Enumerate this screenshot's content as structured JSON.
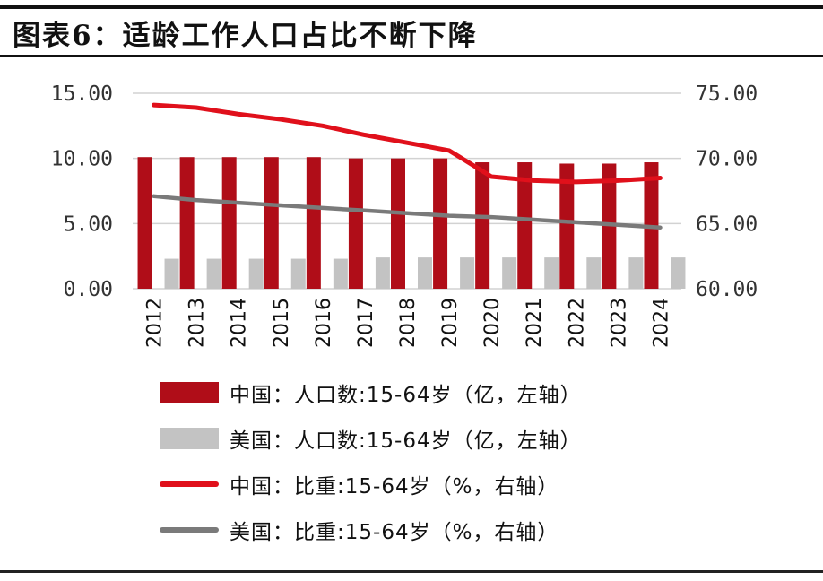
{
  "title": "图表6：适龄工作人口占比不断下降",
  "colors": {
    "china_bar": "#b00d18",
    "us_bar": "#c3c3c3",
    "china_line": "#e0101b",
    "us_line": "#7a7a7a"
  },
  "chart_data": {
    "type": "bar",
    "title": "适龄工作人口占比不断下降",
    "categories": [
      "2012",
      "2013",
      "2014",
      "2015",
      "2016",
      "2017",
      "2018",
      "2019",
      "2020",
      "2021",
      "2022",
      "2023",
      "2024"
    ],
    "y_left": {
      "ylim": [
        0,
        15
      ],
      "ticks": [
        "0.00",
        "5.00",
        "10.00",
        "15.00"
      ]
    },
    "y_right": {
      "ylim": [
        60,
        75
      ],
      "ticks": [
        "60.00",
        "65.00",
        "70.00",
        "75.00"
      ]
    },
    "grid": "horizontal",
    "legend_placement": "bottom",
    "series": [
      {
        "name": "中国：人口数:15-64岁（亿，左轴）",
        "type": "bar",
        "axis": "left",
        "values": [
          10.1,
          10.1,
          10.1,
          10.1,
          10.1,
          10.0,
          10.0,
          10.0,
          9.7,
          9.7,
          9.6,
          9.6,
          9.7
        ]
      },
      {
        "name": "美国：人口数:15-64岁（亿，左轴）",
        "type": "bar",
        "axis": "left",
        "values": [
          2.3,
          2.3,
          2.3,
          2.3,
          2.3,
          2.4,
          2.4,
          2.4,
          2.4,
          2.4,
          2.4,
          2.4,
          2.4
        ]
      },
      {
        "name": "中国：比重:15-64岁（%，右轴）",
        "type": "line",
        "axis": "right",
        "values": [
          74.1,
          73.9,
          73.4,
          73.0,
          72.5,
          71.8,
          71.2,
          70.6,
          68.6,
          68.3,
          68.2,
          68.3,
          68.5
        ]
      },
      {
        "name": "美国：比重:15-64岁（%，右轴）",
        "type": "line",
        "axis": "right",
        "values": [
          67.1,
          66.8,
          66.6,
          66.4,
          66.2,
          66.0,
          65.8,
          65.6,
          65.5,
          65.3,
          65.1,
          64.9,
          64.7
        ]
      }
    ]
  }
}
